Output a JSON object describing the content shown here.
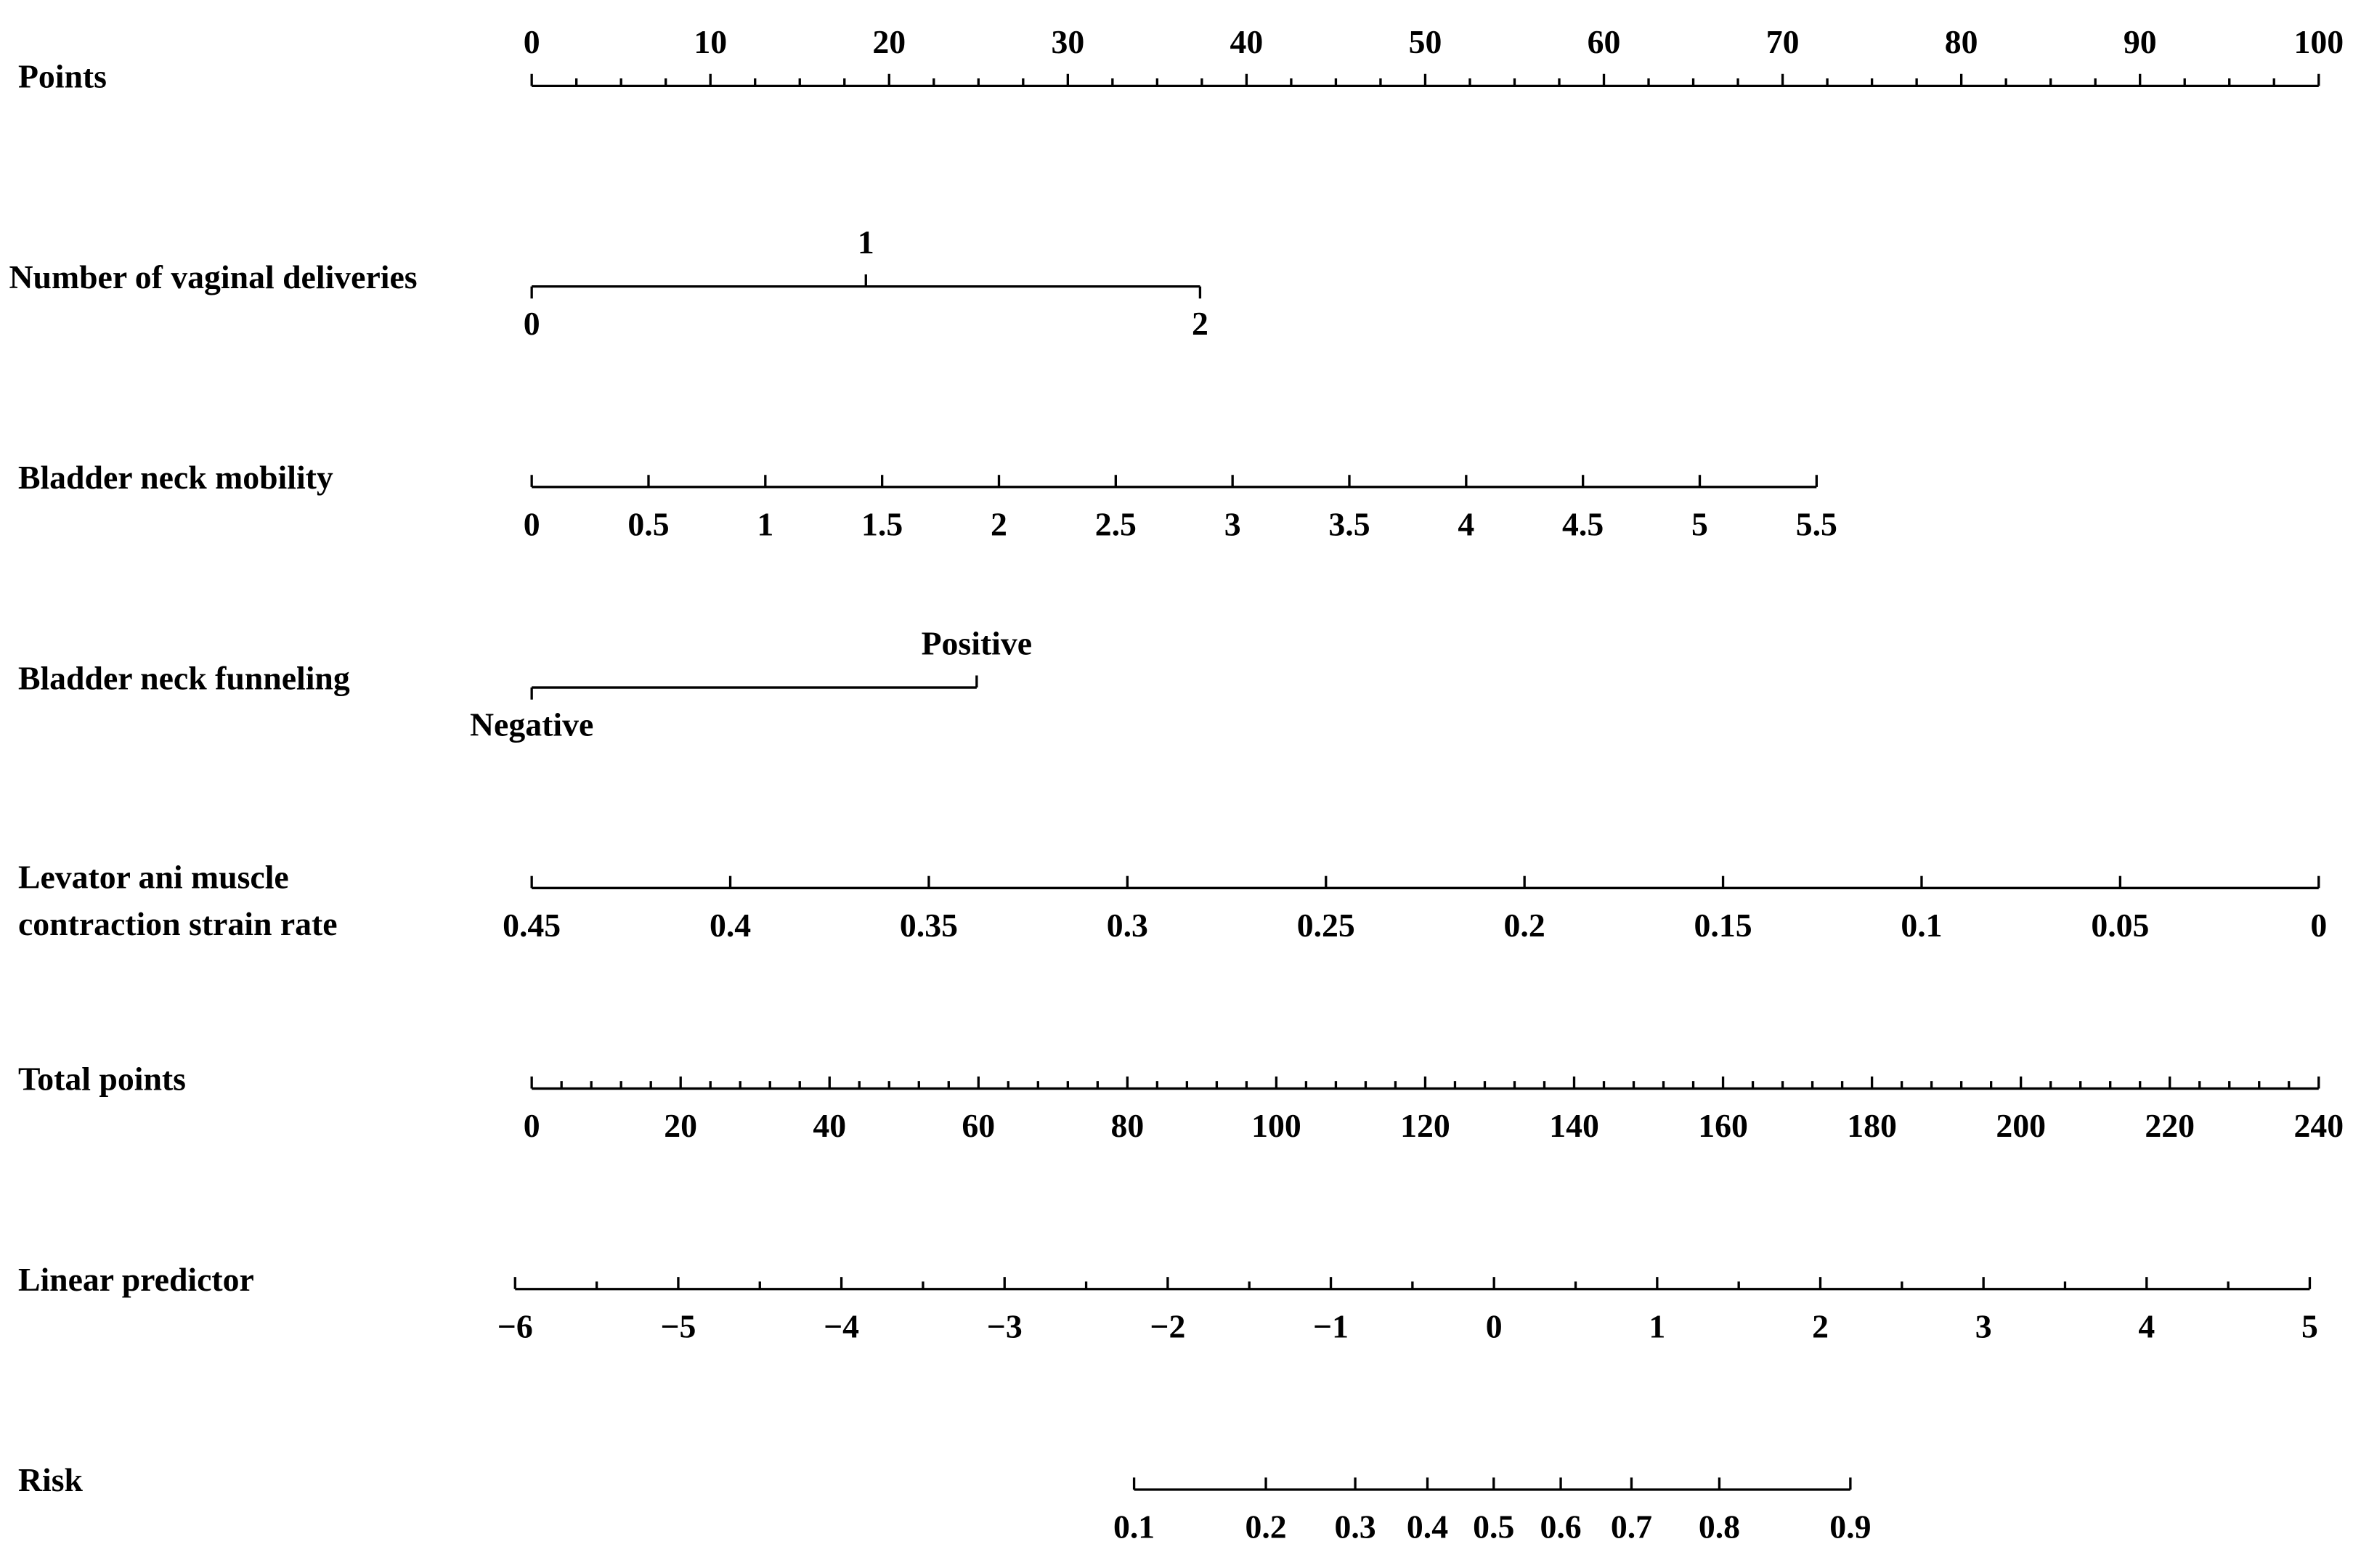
{
  "chart_data": {
    "type": "nomogram",
    "scales": [
      {
        "label": "Points",
        "axis": "points",
        "label_side": "above",
        "ticks": [
          0,
          10,
          20,
          30,
          40,
          50,
          60,
          70,
          80,
          90,
          100
        ],
        "ticklim": [
          0,
          100
        ],
        "pointlim": [
          0,
          100
        ],
        "minor_ticks": [
          2.5,
          5,
          7.5,
          12.5,
          15,
          17.5,
          22.5,
          25,
          27.5,
          32.5,
          35,
          37.5,
          42.5,
          45,
          47.5,
          52.5,
          55,
          57.5,
          62.5,
          65,
          67.5,
          72.5,
          75,
          77.5,
          82.5,
          85,
          87.5,
          92.5,
          95,
          97.5
        ]
      },
      {
        "label": "Number of vaginal deliveries",
        "axis": "points",
        "alternate_labels": true,
        "ticks": [
          0,
          1,
          2
        ],
        "at": [
          0,
          18.7,
          37.4
        ]
      },
      {
        "label": "Bladder neck mobility",
        "axis": "points",
        "ticks": [
          0,
          0.5,
          1,
          1.5,
          2,
          2.5,
          3,
          3.5,
          4,
          4.5,
          5,
          5.5
        ],
        "ticklim": [
          0,
          5.5
        ],
        "pointlim": [
          0,
          71.9
        ]
      },
      {
        "label": "Bladder neck funneling",
        "axis": "points",
        "alternate_labels": true,
        "ticks": [
          "Negative",
          "Positive"
        ],
        "at": [
          0,
          24.9
        ]
      },
      {
        "label": [
          "Levator ani muscle",
          "contraction strain rate"
        ],
        "axis": "points",
        "ticks": [
          0.45,
          0.4,
          0.35,
          0.3,
          0.25,
          0.2,
          0.15,
          0.1,
          0.05,
          0
        ],
        "ticklim": [
          0.45,
          0
        ],
        "pointlim": [
          0,
          100
        ]
      },
      {
        "label": "Total points",
        "axis": "total",
        "ticks": [
          0,
          20,
          40,
          60,
          80,
          100,
          120,
          140,
          160,
          180,
          200,
          220,
          240
        ],
        "ticklim": [
          0,
          240
        ],
        "pointlim": [
          0,
          240
        ],
        "minor_ticks": [
          4,
          8,
          12,
          16,
          24,
          28,
          32,
          36,
          44,
          48,
          52,
          56,
          64,
          68,
          72,
          76,
          84,
          88,
          92,
          96,
          104,
          108,
          112,
          116,
          124,
          128,
          132,
          136,
          144,
          148,
          152,
          156,
          164,
          168,
          172,
          176,
          184,
          188,
          192,
          196,
          204,
          208,
          212,
          216,
          224,
          228,
          232,
          236
        ]
      },
      {
        "label": "Linear predictor",
        "axis": "total",
        "ticks": [
          {
            "value": -6,
            "label": "−6"
          },
          {
            "value": -5,
            "label": "−5"
          },
          {
            "value": -4,
            "label": "−4"
          },
          {
            "value": -3,
            "label": "−3"
          },
          {
            "value": -2,
            "label": "−2"
          },
          {
            "value": -1,
            "label": "−1"
          },
          0,
          1,
          2,
          3,
          4,
          5
        ],
        "ticklim": [
          -6,
          5
        ],
        "pointlim": [
          -2.23,
          238.8
        ],
        "minor_ticks": [
          -5.5,
          -4.5,
          -3.5,
          -2.5,
          -1.5,
          -0.5,
          0.5,
          1.5,
          2.5,
          3.5,
          4.5
        ]
      },
      {
        "label": "Risk",
        "axis": "total",
        "ticks": [
          0.1,
          0.2,
          0.3,
          0.4,
          0.5,
          0.6,
          0.7,
          0.8,
          0.9
        ],
        "at": [
          80.9,
          98.6,
          110.6,
          120.3,
          129.2,
          138.2,
          147.7,
          159.5,
          177.1
        ]
      }
    ]
  }
}
